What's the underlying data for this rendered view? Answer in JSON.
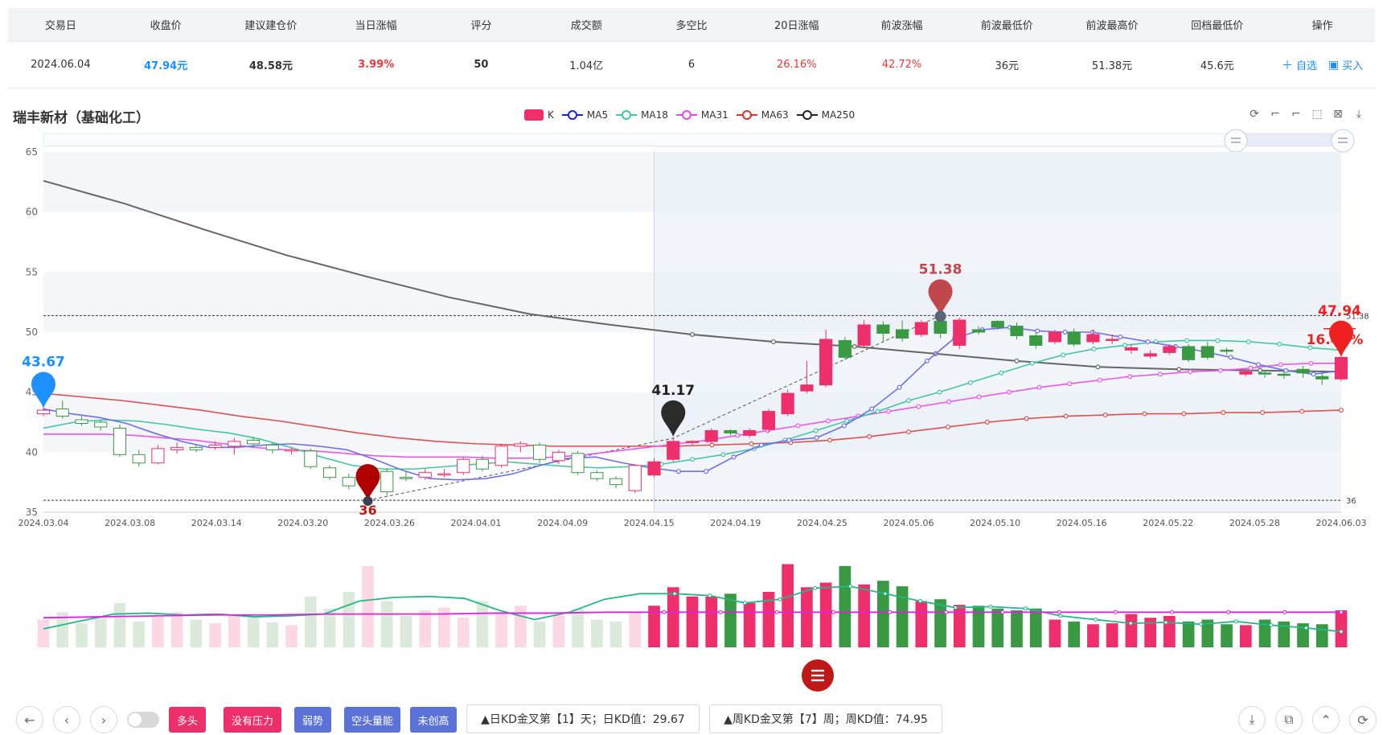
{
  "table": {
    "headers": [
      "交易日",
      "收盘价",
      "建议建仓价",
      "当日涨幅",
      "评分",
      "成交额",
      "多空比",
      "20日涨幅",
      "前波涨幅",
      "前波最低价",
      "前波最高价",
      "回档最低价",
      "操作"
    ],
    "row": {
      "date": "2024.06.04",
      "close": "47.94元",
      "suggest": "48.58元",
      "change": "3.99%",
      "score": "50",
      "amount": "1.04亿",
      "ratio": "6",
      "chg20": "26.16%",
      "prev_chg": "42.72%",
      "prev_low": "36元",
      "prev_high": "51.38元",
      "pullback_low": "45.6元"
    },
    "ops": {
      "add_label": "自选",
      "buy_label": "买入"
    }
  },
  "stock_title": "瑞丰新材（基础化工）",
  "legend": [
    "K",
    "MA5",
    "MA18",
    "MA31",
    "MA63",
    "MA250"
  ],
  "bottom": {
    "tags": [
      "多头",
      "没有压力",
      "弱势",
      "空头量能",
      "未创高"
    ],
    "kd_day": "▲日KD金叉第【1】天；日KD值：29.67",
    "kd_week": "▲周KD金叉第【7】周；周KD值：74.95"
  },
  "colors": {
    "up": "#ef2f6b",
    "down": "#3a9a44",
    "ma5": "#6e6ef0",
    "ma18": "#40c8a0",
    "ma31": "#ee55ee",
    "ma63": "#e05050",
    "ma250": "#666666"
  },
  "chart_data": {
    "type": "candlestick",
    "title": "瑞丰新材（基础化工）",
    "yaxis": {
      "min": 35,
      "max": 65,
      "ticks": [
        35,
        40,
        45,
        50,
        55,
        60,
        65
      ]
    },
    "x_tick_labels": [
      "2024.03.04",
      "2024.03.08",
      "2024.03.14",
      "2024.03.20",
      "2024.03.26",
      "2024.04.01",
      "2024.04.09",
      "2024.04.15",
      "2024.04.19",
      "2024.04.25",
      "2024.05.06",
      "2024.05.10",
      "2024.05.16",
      "2024.05.22",
      "2024.05.28",
      "2024.06.03"
    ],
    "candles": [
      [
        43.2,
        43.5,
        43.0,
        43.9
      ],
      [
        43.6,
        43.0,
        42.8,
        44.3
      ],
      [
        42.7,
        42.4,
        42.2,
        43.0
      ],
      [
        42.5,
        42.1,
        41.8,
        42.7
      ],
      [
        42.0,
        39.8,
        39.6,
        42.3
      ],
      [
        39.8,
        39.1,
        38.8,
        40.2
      ],
      [
        39.1,
        40.3,
        39.0,
        40.6
      ],
      [
        40.2,
        40.4,
        39.9,
        40.8
      ],
      [
        40.4,
        40.2,
        40.0,
        40.6
      ],
      [
        40.4,
        40.6,
        40.2,
        40.9
      ],
      [
        40.5,
        40.9,
        39.8,
        41.2
      ],
      [
        41.0,
        40.7,
        40.4,
        41.3
      ],
      [
        40.6,
        40.2,
        39.9,
        40.8
      ],
      [
        40.1,
        40.2,
        39.8,
        40.4
      ],
      [
        40.1,
        38.8,
        38.6,
        40.3
      ],
      [
        38.7,
        37.9,
        37.7,
        38.9
      ],
      [
        37.9,
        37.2,
        36.9,
        38.2
      ],
      [
        37.1,
        38.4,
        36.0,
        38.6
      ],
      [
        38.4,
        36.7,
        36.4,
        38.7
      ],
      [
        37.9,
        37.8,
        37.6,
        38.4
      ],
      [
        37.9,
        38.3,
        37.7,
        38.6
      ],
      [
        38.2,
        38.2,
        37.9,
        38.6
      ],
      [
        38.3,
        39.4,
        38.1,
        39.6
      ],
      [
        39.4,
        38.6,
        38.4,
        39.7
      ],
      [
        38.9,
        40.5,
        38.7,
        40.7
      ],
      [
        40.5,
        40.7,
        40.0,
        40.9
      ],
      [
        40.6,
        39.4,
        39.1,
        40.8
      ],
      [
        39.3,
        40.0,
        39.0,
        40.2
      ],
      [
        39.9,
        38.3,
        38.1,
        40.1
      ],
      [
        38.3,
        37.8,
        37.6,
        38.5
      ],
      [
        37.8,
        37.3,
        37.0,
        38.0
      ],
      [
        36.8,
        38.9,
        36.6,
        39.0
      ],
      [
        38.1,
        39.2,
        37.9,
        39.5
      ],
      [
        39.4,
        40.9,
        39.2,
        41.2
      ],
      [
        40.8,
        40.9,
        40.6,
        41.0
      ],
      [
        40.9,
        41.8,
        40.7,
        42.0
      ],
      [
        41.8,
        41.6,
        41.4,
        41.9
      ],
      [
        41.4,
        41.8,
        41.2,
        42.0
      ],
      [
        41.9,
        43.4,
        41.7,
        43.6
      ],
      [
        43.2,
        44.9,
        43.0,
        45.2
      ],
      [
        45.1,
        45.6,
        44.9,
        47.6
      ],
      [
        45.6,
        49.4,
        45.4,
        50.2
      ],
      [
        49.3,
        47.9,
        47.7,
        49.6
      ],
      [
        48.9,
        50.6,
        48.7,
        51.0
      ],
      [
        50.6,
        49.9,
        49.2,
        50.9
      ],
      [
        50.2,
        49.5,
        49.2,
        51.0
      ],
      [
        49.8,
        50.8,
        49.6,
        51.0
      ],
      [
        50.9,
        49.9,
        49.5,
        51.4
      ],
      [
        48.9,
        51.0,
        48.6,
        51.2
      ],
      [
        50.2,
        50.0,
        49.8,
        50.5
      ],
      [
        50.9,
        50.4,
        50.2,
        51.0
      ],
      [
        50.5,
        49.7,
        49.4,
        50.8
      ],
      [
        49.7,
        48.9,
        48.6,
        50.0
      ],
      [
        49.2,
        50.0,
        49.0,
        50.2
      ],
      [
        50.0,
        49.0,
        48.8,
        50.3
      ],
      [
        49.2,
        49.8,
        49.0,
        50.2
      ],
      [
        49.4,
        49.4,
        49.0,
        49.8
      ],
      [
        48.5,
        48.7,
        48.2,
        49.0
      ],
      [
        48.0,
        48.2,
        47.8,
        48.5
      ],
      [
        48.3,
        48.8,
        48.1,
        49.0
      ],
      [
        48.8,
        47.7,
        47.5,
        49.0
      ],
      [
        48.8,
        47.9,
        47.7,
        49.2
      ],
      [
        48.5,
        48.4,
        48.1,
        48.7
      ],
      [
        46.5,
        46.7,
        46.3,
        46.9
      ],
      [
        46.6,
        46.5,
        46.2,
        46.8
      ],
      [
        46.5,
        46.4,
        46.1,
        46.7
      ],
      [
        46.9,
        46.6,
        46.2,
        47.2
      ],
      [
        46.3,
        46.1,
        45.6,
        46.6
      ],
      [
        46.1,
        47.9,
        45.9,
        48.3
      ]
    ],
    "ma5_sampled": [
      43.6,
      43.2,
      42.9,
      42.4,
      41.6,
      40.9,
      40.4,
      40.4,
      40.6,
      40.7,
      40.5,
      40.2,
      39.4,
      38.5,
      37.8,
      37.7,
      37.8,
      38.2,
      38.9,
      39.5,
      39.6,
      39.1,
      38.7,
      38.4,
      38.4,
      39.6,
      40.6,
      41.0,
      41.2,
      42.2,
      43.6,
      45.4,
      47.6,
      49.5,
      50.2,
      50.4,
      50.1,
      50.0,
      50.0,
      49.6,
      49.2,
      48.8,
      48.4,
      47.9,
      47.3,
      46.8,
      46.5,
      46.8
    ],
    "ma18_sampled": [
      42.0,
      42.5,
      42.7,
      42.6,
      42.3,
      41.9,
      41.6,
      41.1,
      40.4,
      39.6,
      38.9,
      38.6,
      38.6,
      38.8,
      39.0,
      39.2,
      39.0,
      38.8,
      38.7,
      38.8,
      39.0,
      39.4,
      39.8,
      40.3,
      41.0,
      41.8,
      42.6,
      43.4,
      44.3,
      45.0,
      45.8,
      46.6,
      47.4,
      48.1,
      48.6,
      48.9,
      49.2,
      49.3,
      49.3,
      49.2,
      49.0,
      48.7,
      48.5
    ],
    "ma31_sampled": [
      41.5,
      41.5,
      41.5,
      41.4,
      41.2,
      41.0,
      40.7,
      40.4,
      40.2,
      40.1,
      39.9,
      39.7,
      39.6,
      39.6,
      39.6,
      39.5,
      39.5,
      39.6,
      39.8,
      40.1,
      40.4,
      40.7,
      41.0,
      41.4,
      41.8,
      42.2,
      42.6,
      43.0,
      43.4,
      43.8,
      44.2,
      44.6,
      45.0,
      45.4,
      45.7,
      46.0,
      46.3,
      46.5,
      46.7,
      46.8,
      47.0,
      47.3,
      47.4,
      47.4
    ],
    "ma63_sampled": [
      44.9,
      44.6,
      44.3,
      43.9,
      43.5,
      43.0,
      42.6,
      42.1,
      41.6,
      41.2,
      40.9,
      40.7,
      40.6,
      40.5,
      40.5,
      40.5,
      40.5,
      40.6,
      40.7,
      40.8,
      41.0,
      41.3,
      41.7,
      42.1,
      42.5,
      42.8,
      43.0,
      43.1,
      43.2,
      43.2,
      43.3,
      43.3,
      43.4,
      43.5
    ],
    "ma250_sampled": [
      62.6,
      60.7,
      58.5,
      56.4,
      54.6,
      52.9,
      51.5,
      50.6,
      49.8,
      49.2,
      48.8,
      48.2,
      47.6,
      47.1,
      46.9,
      46.8,
      46.7
    ],
    "markers": [
      {
        "label": "43.67",
        "value": 43.67
      },
      {
        "label": "36",
        "value": 36
      },
      {
        "label": "41.17",
        "value": 41.17
      },
      {
        "label": "51.38",
        "value": 51.38
      },
      {
        "label": "47.94",
        "value": 47.94,
        "sub": "16.44%"
      }
    ],
    "hlines": [
      {
        "label": "51.38",
        "value": 51.38
      },
      {
        "label": "36",
        "value": 36
      }
    ],
    "volume": [
      30,
      38,
      26,
      34,
      48,
      28,
      33,
      38,
      30,
      26,
      36,
      32,
      27,
      24,
      55,
      42,
      60,
      88,
      50,
      34,
      40,
      43,
      32,
      50,
      38,
      45,
      28,
      35,
      42,
      30,
      28,
      38,
      45,
      65,
      55,
      55,
      58,
      48,
      60,
      90,
      65,
      70,
      88,
      68,
      72,
      66,
      50,
      52,
      46,
      45,
      42,
      40,
      42,
      30,
      28,
      25,
      26,
      36,
      32,
      34,
      28,
      30,
      25,
      24,
      30,
      28,
      26,
      25,
      40
    ],
    "volume_ma_a_sampled": [
      20,
      28,
      36,
      37,
      35,
      36,
      33,
      34,
      36,
      50,
      54,
      55,
      53,
      40,
      30,
      38,
      52,
      58,
      58,
      56,
      48,
      52,
      64,
      66,
      58,
      50,
      43,
      44,
      42,
      34,
      30,
      26,
      27,
      25,
      28,
      24,
      21,
      17
    ],
    "volume_ma_b_sampled": [
      32,
      33,
      34,
      35,
      35,
      36,
      36,
      36,
      37,
      37,
      38,
      38,
      38,
      38,
      38,
      38,
      38,
      38,
      38,
      38,
      38,
      38,
      38,
      38
    ]
  }
}
